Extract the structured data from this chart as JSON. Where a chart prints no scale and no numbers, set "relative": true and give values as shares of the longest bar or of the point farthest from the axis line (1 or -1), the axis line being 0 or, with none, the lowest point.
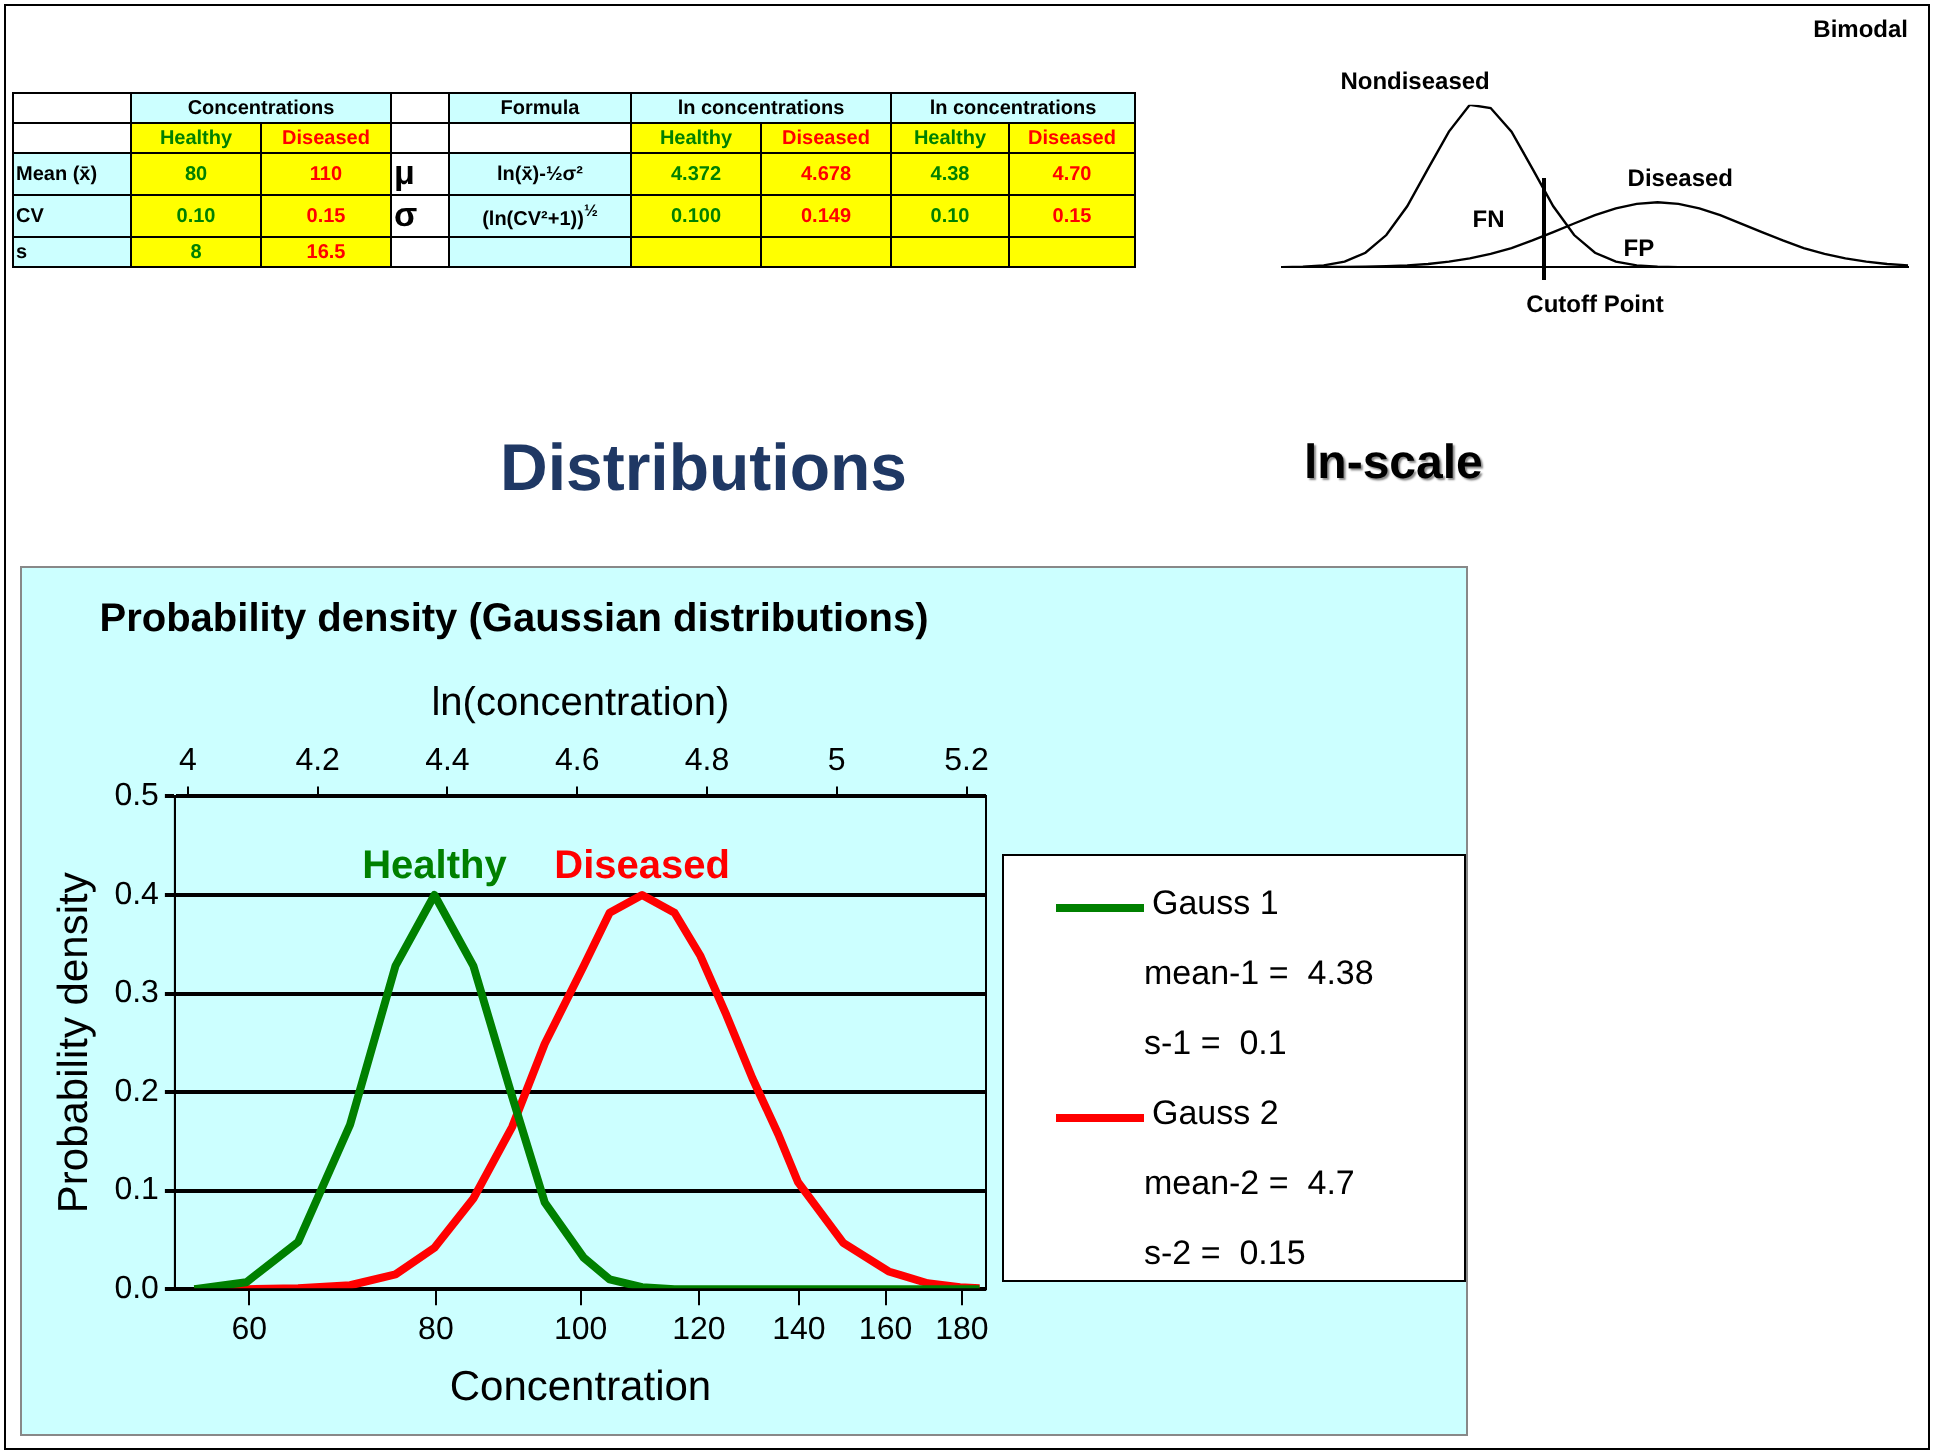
{
  "chart_data": [
    {
      "type": "other",
      "annotations": [
        "Concentrations",
        "Formula",
        "ln concentrations",
        "ln concentrations",
        "Healthy",
        "Diseased",
        "Healthy",
        "Diseased",
        "Healthy",
        "Diseased",
        "Mean (x̄)",
        "80",
        "110",
        "μ",
        "ln(x̄)-½σ²",
        "4.372",
        "4.678",
        "4.38",
        "4.70",
        "CV",
        "0.10",
        "0.15",
        "σ",
        "(ln(CV²+1))$^{½}$",
        "0.100",
        "0.149",
        "0.10",
        "0.15",
        "s",
        "8",
        "16.5",
        "Distributions",
        "ln-scale"
      ]
    },
    {
      "type": "line",
      "title": "Bimodal",
      "xlabel": "Cutoff Point",
      "relative": true,
      "tick_labels": false,
      "categories": [
        null,
        null,
        null,
        null,
        null,
        null,
        null,
        null,
        null,
        null,
        null,
        null,
        null,
        null,
        null,
        null,
        null,
        null,
        null,
        null,
        null,
        null,
        null,
        null,
        null,
        null,
        null,
        null,
        null,
        null,
        null
      ],
      "series": [
        {
          "name": "Nondiseased",
          "color": "#000000",
          "values": [
            0,
            0.003,
            0.011,
            0.034,
            0.089,
            0.198,
            0.375,
            0.607,
            0.835,
            1,
            0.98,
            0.835,
            0.607,
            0.375,
            0.198,
            0.089,
            0.034,
            0.011,
            0.003,
            0,
            0,
            0,
            0,
            0,
            0,
            0,
            0,
            0,
            0,
            0,
            0
          ]
        },
        {
          "name": "Diseased",
          "color": "#000000",
          "values": [
            0,
            0,
            0.001,
            0.002,
            0.003,
            0.006,
            0.011,
            0.02,
            0.034,
            0.054,
            0.082,
            0.118,
            0.165,
            0.216,
            0.269,
            0.32,
            0.362,
            0.39,
            0.4,
            0.39,
            0.362,
            0.32,
            0.269,
            0.216,
            0.165,
            0.118,
            0.082,
            0.054,
            0.034,
            0.02,
            0.011
          ]
        }
      ],
      "annotations": [
        "FN",
        "FP"
      ]
    },
    {
      "type": "line",
      "title": "Probability density (Gaussian distributions)",
      "xlabel": "ln(concentration)",
      "x2label": "Concentration",
      "ylabel": "Probability density",
      "log": "x2",
      "grid": "y",
      "legend": "right",
      "xlim": [
        3.98,
        5.23
      ],
      "xticks": [
        4,
        4.2,
        4.4,
        4.6,
        4.8,
        5,
        5.2
      ],
      "x2lim": [
        53.5,
        186.8
      ],
      "x2ticks": [
        60,
        80,
        100,
        120,
        140,
        160,
        180
      ],
      "ylim": [
        0,
        0.5
      ],
      "yticks": [
        {
          "value": 0,
          "label": "0.0"
        },
        {
          "value": 0.1,
          "label": "0.1"
        },
        {
          "value": 0.2,
          "label": "0.2"
        },
        {
          "value": 0.3,
          "label": "0.3"
        },
        {
          "value": 0.4,
          "label": "0.4"
        },
        {
          "value": 0.5,
          "label": "0.5"
        }
      ],
      "x": [
        4.01,
        4.09,
        4.17,
        4.25,
        4.32,
        4.38,
        4.44,
        4.5,
        4.55,
        4.61,
        4.65,
        4.7,
        4.75,
        4.79,
        4.83,
        4.87,
        4.91,
        4.94,
        5.01,
        5.08,
        5.14,
        5.19,
        5.22
      ],
      "series": [
        {
          "name": "Gauss 1",
          "color": "#008000",
          "values": [
            0,
            0.007,
            0.048,
            0.167,
            0.328,
            0.4,
            0.328,
            0.195,
            0.088,
            0.032,
            0.01,
            0.002,
            0,
            0,
            0,
            0,
            0,
            0,
            0,
            0,
            0,
            0,
            0
          ]
        },
        {
          "name": "Gauss 2",
          "color": "#ff0000",
          "values": [
            0,
            0,
            0.001,
            0.004,
            0.015,
            0.042,
            0.092,
            0.165,
            0.249,
            0.328,
            0.382,
            0.4,
            0.382,
            0.338,
            0.278,
            0.214,
            0.157,
            0.109,
            0.047,
            0.018,
            0.006,
            0.002,
            0.001
          ]
        }
      ],
      "annotations": [
        "mean-1 =  4.38",
        "s-1 =  0.1",
        "mean-2 =  4.7",
        "s-2 =  0.15",
        "Healthy",
        "Diseased"
      ]
    }
  ]
}
